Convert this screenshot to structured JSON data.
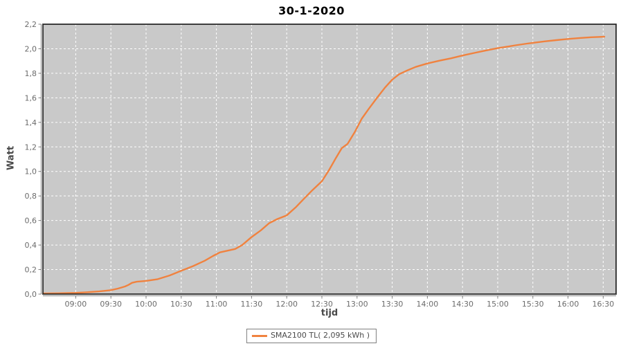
{
  "colors": {
    "plot_background": "#c9c9c9",
    "gridline": "#ffffff",
    "series_line": "#f0823f",
    "plot_border": "#2b2b2b",
    "axis_line": "#808080",
    "tick_label": "#6b6b6b",
    "axis_label": "#4a4a4a",
    "title": "#000000"
  },
  "chart_data": {
    "type": "line",
    "title": "30-1-2020",
    "xlabel": "tijd",
    "ylabel": "Watt",
    "grid": true,
    "legend_position": "bottom-center",
    "x_range": [
      "08:32",
      "16:41"
    ],
    "ylim": [
      0,
      2.2
    ],
    "x_ticks": [
      "09:00",
      "09:30",
      "10:00",
      "10:30",
      "11:00",
      "11:30",
      "12:00",
      "12:30",
      "13:00",
      "13:30",
      "14:00",
      "14:30",
      "15:00",
      "15:30",
      "16:00",
      "16:30"
    ],
    "y_ticks": [
      "0,0",
      "0,2",
      "0,4",
      "0,6",
      "0,8",
      "1,0",
      "1,2",
      "1,4",
      "1,6",
      "1,8",
      "2,0",
      "2,2"
    ],
    "series": [
      {
        "name": "SMA2100 TL( 2,095 kWh )",
        "color": "#f0823f",
        "points": [
          [
            "08:32",
            0.005
          ],
          [
            "08:45",
            0.007
          ],
          [
            "09:00",
            0.01
          ],
          [
            "09:10",
            0.015
          ],
          [
            "09:20",
            0.022
          ],
          [
            "09:30",
            0.032
          ],
          [
            "09:36",
            0.045
          ],
          [
            "09:42",
            0.062
          ],
          [
            "09:45",
            0.075
          ],
          [
            "09:48",
            0.092
          ],
          [
            "09:52",
            0.101
          ],
          [
            "10:00",
            0.108
          ],
          [
            "10:10",
            0.122
          ],
          [
            "10:20",
            0.152
          ],
          [
            "10:30",
            0.19
          ],
          [
            "10:40",
            0.228
          ],
          [
            "10:50",
            0.272
          ],
          [
            "10:57",
            0.31
          ],
          [
            "11:03",
            0.34
          ],
          [
            "11:10",
            0.355
          ],
          [
            "11:16",
            0.368
          ],
          [
            "11:22",
            0.4
          ],
          [
            "11:30",
            0.465
          ],
          [
            "11:38",
            0.52
          ],
          [
            "11:45",
            0.578
          ],
          [
            "11:52",
            0.612
          ],
          [
            "12:00",
            0.642
          ],
          [
            "12:08",
            0.71
          ],
          [
            "12:15",
            0.78
          ],
          [
            "12:22",
            0.848
          ],
          [
            "12:30",
            0.92
          ],
          [
            "12:36",
            1.01
          ],
          [
            "12:42",
            1.11
          ],
          [
            "12:47",
            1.19
          ],
          [
            "12:52",
            1.225
          ],
          [
            "12:58",
            1.32
          ],
          [
            "13:04",
            1.43
          ],
          [
            "13:10",
            1.51
          ],
          [
            "13:17",
            1.6
          ],
          [
            "13:24",
            1.685
          ],
          [
            "13:30",
            1.748
          ],
          [
            "13:36",
            1.793
          ],
          [
            "13:42",
            1.82
          ],
          [
            "13:50",
            1.852
          ],
          [
            "14:00",
            1.88
          ],
          [
            "14:10",
            1.902
          ],
          [
            "14:20",
            1.922
          ],
          [
            "14:30",
            1.945
          ],
          [
            "14:40",
            1.966
          ],
          [
            "14:50",
            1.986
          ],
          [
            "15:00",
            2.005
          ],
          [
            "15:10",
            2.02
          ],
          [
            "15:15",
            2.028
          ],
          [
            "15:25",
            2.042
          ],
          [
            "15:30",
            2.048
          ],
          [
            "15:40",
            2.06
          ],
          [
            "15:50",
            2.07
          ],
          [
            "16:00",
            2.08
          ],
          [
            "16:10",
            2.088
          ],
          [
            "16:20",
            2.094
          ],
          [
            "16:31",
            2.098
          ]
        ]
      }
    ]
  }
}
